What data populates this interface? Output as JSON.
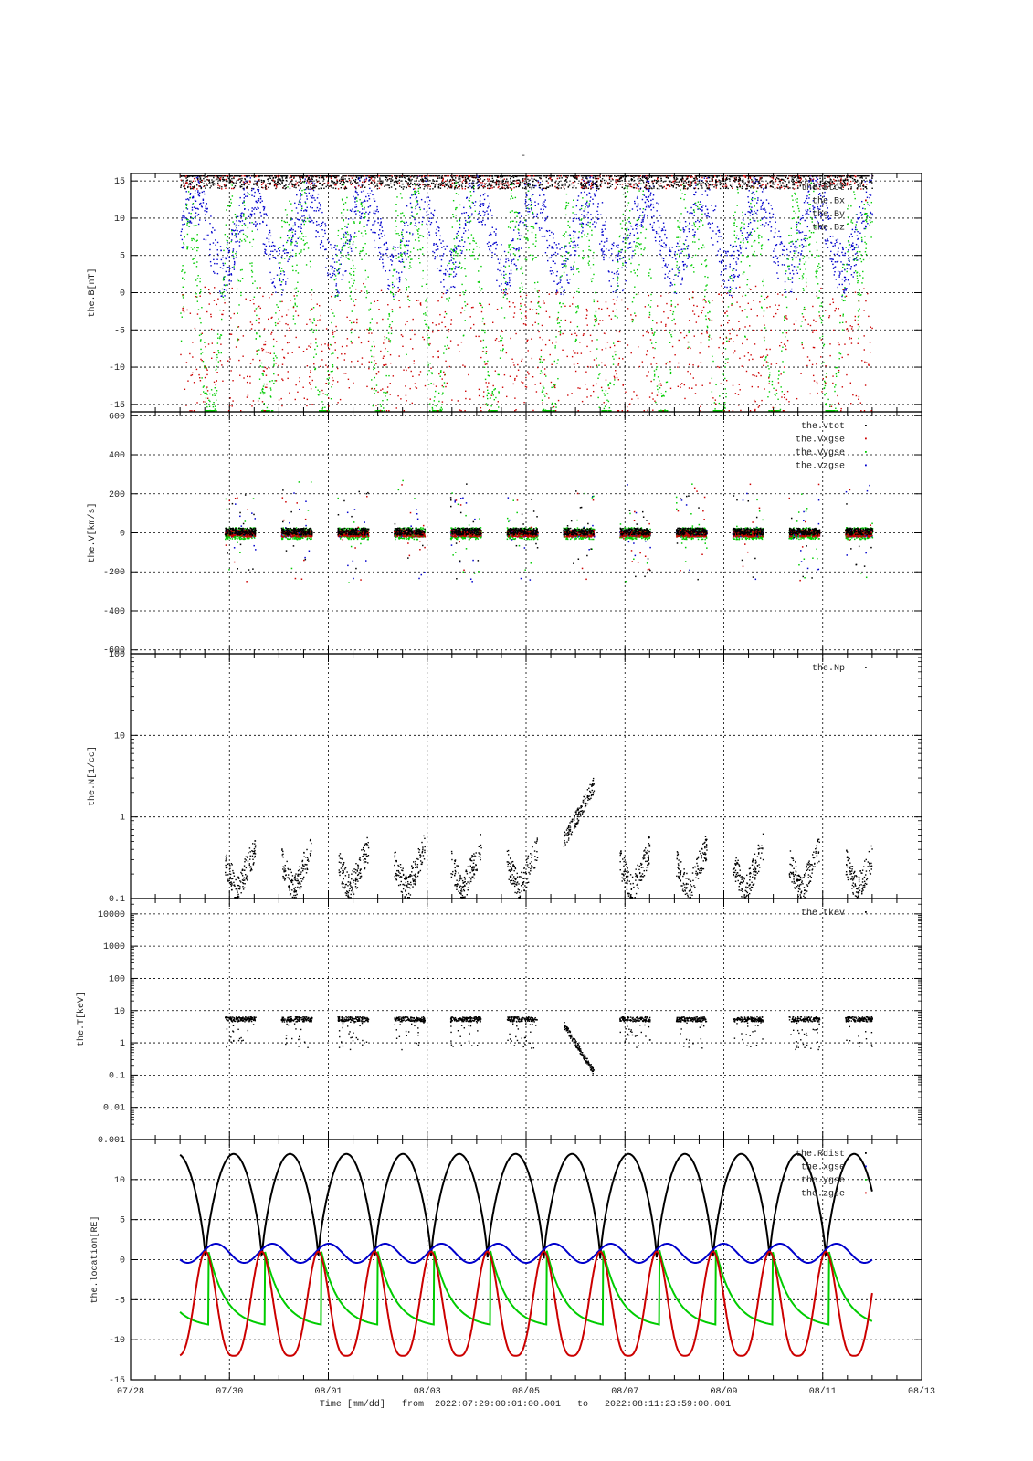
{
  "page": {
    "title": "-",
    "xlabel_prefix": "Time [mm/dd]",
    "range_from_label": "from",
    "range_from": "2022:07:29:00:01:00.001",
    "range_to_label": "to",
    "range_to": "2022:08:11:23:59:00.001"
  },
  "x_axis": {
    "ticks": [
      "07/28",
      "07/30",
      "08/01",
      "08/03",
      "08/05",
      "08/07",
      "08/09",
      "08/11",
      "08/13"
    ],
    "range_days": [
      0,
      16
    ],
    "minor_step_days": 0.5,
    "data_start_day": 1.0,
    "data_end_day": 15.0
  },
  "chart_data": [
    {
      "type": "scatter",
      "ylabel": "the.B[nT]",
      "ylim": [
        -16,
        16
      ],
      "yscale": "linear",
      "yticks": [
        15,
        10,
        5,
        0,
        -5,
        -10,
        -15
      ],
      "ytick_labels": [
        "15",
        "10",
        "5",
        "0",
        "-5",
        "-10",
        "-15"
      ],
      "grid": true,
      "legend": "top-right",
      "series": [
        {
          "name": "the.Btot",
          "color": "#000000"
        },
        {
          "name": "the.Bx",
          "color": "#cc0000"
        },
        {
          "name": "the.By",
          "color": "#00cc00"
        },
        {
          "name": "the.Bz",
          "color": "#0000cc"
        }
      ]
    },
    {
      "type": "scatter",
      "ylabel": "the.V[km/s]",
      "ylim": [
        -620,
        620
      ],
      "yscale": "linear",
      "yticks": [
        600,
        400,
        200,
        0,
        -200,
        -400,
        -600
      ],
      "ytick_labels": [
        "600",
        "400",
        "200",
        "0",
        "-200",
        "-400",
        "-600"
      ],
      "grid": true,
      "legend": "top-right",
      "series": [
        {
          "name": "the.vtot",
          "color": "#000000"
        },
        {
          "name": "the.vxgse",
          "color": "#cc0000"
        },
        {
          "name": "the.vygse",
          "color": "#00cc00"
        },
        {
          "name": "the.vzgse",
          "color": "#0000cc"
        }
      ]
    },
    {
      "type": "scatter",
      "ylabel": "the.N[1/cc]",
      "ylim": [
        0.1,
        100
      ],
      "yscale": "log",
      "yticks": [
        100,
        10,
        1,
        0.1
      ],
      "ytick_labels": [
        "100",
        "10",
        "1",
        "0.1"
      ],
      "grid": true,
      "legend": "top-right",
      "series": [
        {
          "name": "the.Np",
          "color": "#000000"
        }
      ]
    },
    {
      "type": "scatter",
      "ylabel": "the.T[keV]",
      "ylim": [
        0.001,
        30000
      ],
      "yscale": "log",
      "yticks": [
        10000,
        1000,
        100,
        10,
        1,
        0.1,
        0.01,
        0.001
      ],
      "ytick_labels": [
        "10000",
        "1000",
        "100",
        "10",
        "1",
        "0.1",
        "0.01",
        "0.001"
      ],
      "grid": true,
      "legend": "top-right",
      "series": [
        {
          "name": "the.tkev",
          "color": "#000000"
        }
      ]
    },
    {
      "type": "line",
      "ylabel": "the.location[RE]",
      "ylim": [
        -15,
        15
      ],
      "yscale": "linear",
      "yticks": [
        10,
        5,
        0,
        -5,
        -10,
        -15
      ],
      "ytick_labels": [
        "10",
        "5",
        "0",
        "-5",
        "-10",
        "-15"
      ],
      "grid": true,
      "legend": "top-right",
      "period_days": 1.141,
      "series": [
        {
          "name": "the.Rdist",
          "color": "#000000",
          "apogee": 13.2,
          "perigee": 0.0
        },
        {
          "name": "the.xgse",
          "color": "#0000cc",
          "max": 2.0,
          "min": -0.4
        },
        {
          "name": "the.ygse",
          "color": "#00cc00",
          "max": 1.2,
          "min": -8.5
        },
        {
          "name": "the.zgse",
          "color": "#cc0000",
          "max": 1.0,
          "min": -12.0
        }
      ]
    }
  ]
}
